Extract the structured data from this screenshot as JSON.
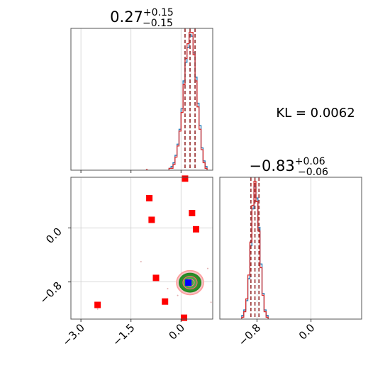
{
  "chart_data": [
    {
      "type": "histogram",
      "panel": "top-left",
      "title_main": "0.27",
      "title_sup": "+0.15",
      "title_sub": "−0.15",
      "xlim": [
        -3.3,
        0.95
      ],
      "grid": true,
      "series": [
        {
          "name": "",
          "color": "#1f77b4",
          "x": [
            -0.33,
            -0.27,
            -0.21,
            -0.15,
            -0.09,
            -0.03,
            0.03,
            0.09,
            0.15,
            0.21,
            0.27,
            0.33,
            0.39,
            0.45,
            0.51,
            0.57,
            0.63,
            0.69,
            0.75
          ],
          "values": [
            1,
            2,
            4,
            8,
            14,
            22,
            33,
            48,
            58,
            66,
            73,
            72,
            63,
            50,
            36,
            24,
            12,
            5,
            2
          ]
        },
        {
          "name": "",
          "color": "#d62728",
          "x": [
            -0.33,
            -0.27,
            -0.21,
            -0.15,
            -0.09,
            -0.03,
            0.03,
            0.09,
            0.15,
            0.21,
            0.27,
            0.33,
            0.39,
            0.45,
            0.51,
            0.57,
            0.63,
            0.69,
            0.75
          ],
          "values": [
            1,
            1,
            3,
            7,
            13,
            21,
            31,
            46,
            60,
            68,
            74,
            74,
            62,
            48,
            34,
            22,
            11,
            4,
            1
          ]
        }
      ],
      "quantile_lines": [
        0.12,
        0.27,
        0.42
      ],
      "quantile_line_color": "#a04040"
    },
    {
      "type": "scatter",
      "panel": "bottom-left",
      "xlim": [
        -3.3,
        0.95
      ],
      "ylim": [
        -1.35,
        0.75
      ],
      "grid": true,
      "xticks": [
        "−3.0",
        "−1.5",
        "0.0"
      ],
      "xtick_values": [
        -3.0,
        -1.5,
        0.0
      ],
      "yticks": [
        "0.0",
        "−0.8"
      ],
      "ytick_values": [
        0.0,
        -0.8
      ],
      "red_markers": [
        {
          "x": 0.12,
          "y": 0.73
        },
        {
          "x": -0.95,
          "y": 0.44
        },
        {
          "x": 0.33,
          "y": 0.22
        },
        {
          "x": -0.88,
          "y": 0.12
        },
        {
          "x": 0.45,
          "y": -0.02
        },
        {
          "x": -0.75,
          "y": -0.74
        },
        {
          "x": -2.5,
          "y": -1.14
        },
        {
          "x": -0.48,
          "y": -1.09
        },
        {
          "x": 0.09,
          "y": -1.33
        }
      ],
      "marker_color": "#ff0000",
      "contour_center": {
        "x": 0.27,
        "y": -0.81
      },
      "contour_colors": [
        "#ff9999",
        "#228b22",
        "#0000ff"
      ],
      "truth_marker": {
        "x": 0.22,
        "y": -0.81,
        "color": "#0000ff"
      }
    },
    {
      "type": "histogram",
      "panel": "bottom-right",
      "title_main": "−0.83",
      "title_sup": "+0.06",
      "title_sub": "−0.06",
      "xlim": [
        -1.35,
        0.75
      ],
      "grid": true,
      "xticks": [
        "−0.8",
        "0.0"
      ],
      "xtick_values": [
        -0.8,
        0.0
      ],
      "series": [
        {
          "name": "",
          "color": "#1f77b4",
          "x": [
            -1.01,
            -0.98,
            -0.95,
            -0.92,
            -0.89,
            -0.86,
            -0.83,
            -0.8,
            -0.77,
            -0.74,
            -0.71,
            -0.68,
            -0.65
          ],
          "values": [
            2,
            5,
            10,
            22,
            40,
            60,
            72,
            66,
            50,
            30,
            14,
            5,
            2
          ]
        },
        {
          "name": "",
          "color": "#d62728",
          "x": [
            -1.01,
            -0.98,
            -0.95,
            -0.92,
            -0.89,
            -0.86,
            -0.83,
            -0.8,
            -0.77,
            -0.74,
            -0.71,
            -0.68,
            -0.65
          ],
          "values": [
            1,
            4,
            11,
            24,
            42,
            62,
            75,
            64,
            48,
            28,
            13,
            4,
            1
          ]
        }
      ],
      "quantile_lines": [
        -0.89,
        -0.83,
        -0.77
      ],
      "quantile_line_color": "#a04040"
    }
  ],
  "annotation": {
    "text": "KL = 0.0062"
  }
}
